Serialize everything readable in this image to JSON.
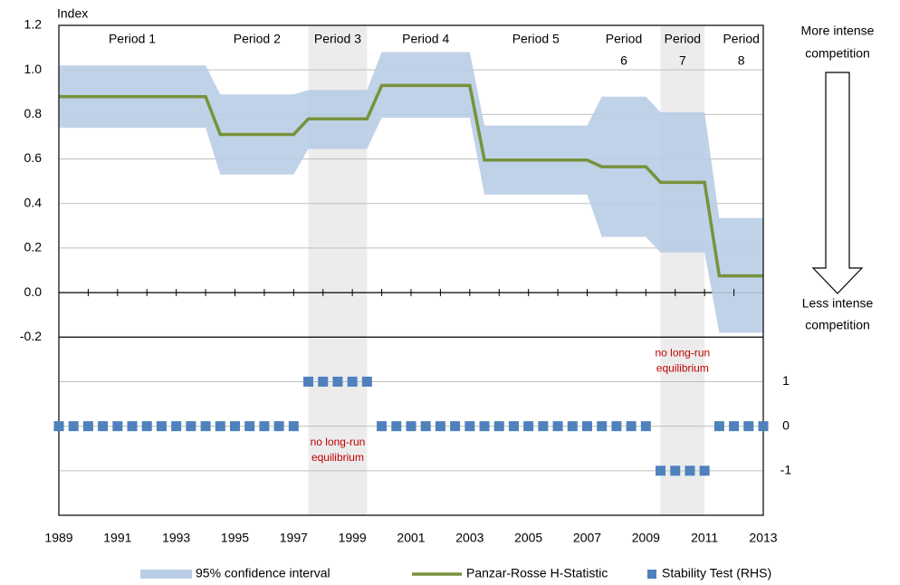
{
  "chart_data": {
    "type": "combo",
    "y_label": "Index",
    "x": [
      1989,
      1989.5,
      1990,
      1990.5,
      1991,
      1991.5,
      1992,
      1992.5,
      1993,
      1993.5,
      1994,
      1994.5,
      1995,
      1995.5,
      1996,
      1996.5,
      1997,
      1997.5,
      1998,
      1998.5,
      1999,
      1999.5,
      2000,
      2000.5,
      2001,
      2001.5,
      2002,
      2002.5,
      2003,
      2003.5,
      2004,
      2004.5,
      2005,
      2005.5,
      2006,
      2006.5,
      2007,
      2007.5,
      2008,
      2008.5,
      2009,
      2009.5,
      2010,
      2010.5,
      2011,
      2011.5,
      2012,
      2012.5,
      2013
    ],
    "series": [
      {
        "name": "95% confidence interval",
        "color": "#b9cde5",
        "type": "band",
        "upper": [
          1.02,
          1.02,
          1.02,
          1.02,
          1.02,
          1.02,
          1.02,
          1.02,
          1.02,
          1.02,
          1.02,
          0.89,
          0.89,
          0.89,
          0.89,
          0.89,
          0.89,
          0.91,
          0.91,
          0.91,
          0.91,
          0.91,
          1.08,
          1.08,
          1.08,
          1.08,
          1.08,
          1.08,
          1.08,
          0.75,
          0.75,
          0.75,
          0.75,
          0.75,
          0.75,
          0.75,
          0.75,
          0.88,
          0.88,
          0.88,
          0.88,
          0.81,
          0.81,
          0.81,
          0.81,
          0.335,
          0.335,
          0.335,
          0.335
        ],
        "lower": [
          0.74,
          0.74,
          0.74,
          0.74,
          0.74,
          0.74,
          0.74,
          0.74,
          0.74,
          0.74,
          0.74,
          0.53,
          0.53,
          0.53,
          0.53,
          0.53,
          0.53,
          0.645,
          0.645,
          0.645,
          0.645,
          0.645,
          0.785,
          0.785,
          0.785,
          0.785,
          0.785,
          0.785,
          0.785,
          0.44,
          0.44,
          0.44,
          0.44,
          0.44,
          0.44,
          0.44,
          0.44,
          0.25,
          0.25,
          0.25,
          0.25,
          0.18,
          0.18,
          0.18,
          0.18,
          -0.18,
          -0.18,
          -0.18,
          -0.18
        ]
      },
      {
        "name": "Panzar-Rosse H-Statistic",
        "color": "#77933c",
        "type": "line",
        "values": [
          0.88,
          0.88,
          0.88,
          0.88,
          0.88,
          0.88,
          0.88,
          0.88,
          0.88,
          0.88,
          0.88,
          0.71,
          0.71,
          0.71,
          0.71,
          0.71,
          0.71,
          0.78,
          0.78,
          0.78,
          0.78,
          0.78,
          0.93,
          0.93,
          0.93,
          0.93,
          0.93,
          0.93,
          0.93,
          0.595,
          0.595,
          0.595,
          0.595,
          0.595,
          0.595,
          0.595,
          0.595,
          0.565,
          0.565,
          0.565,
          0.565,
          0.495,
          0.495,
          0.495,
          0.495,
          0.075,
          0.075,
          0.075,
          0.075
        ]
      },
      {
        "name": "Stability Test (RHS)",
        "color": "#4f81bd",
        "type": "scatter",
        "axis": "y2",
        "values": [
          0,
          0,
          0,
          0,
          0,
          0,
          0,
          0,
          0,
          0,
          0,
          0,
          0,
          0,
          0,
          0,
          0,
          1,
          1,
          1,
          1,
          1,
          0,
          0,
          0,
          0,
          0,
          0,
          0,
          0,
          0,
          0,
          0,
          0,
          0,
          0,
          0,
          0,
          0,
          0,
          0,
          -1,
          -1,
          -1,
          -1,
          0,
          0,
          0,
          0
        ]
      }
    ],
    "periods": [
      [
        "Period 1"
      ],
      [
        "Period 2"
      ],
      [
        "Period 3"
      ],
      [
        "Period 4"
      ],
      [
        "Period 5"
      ],
      [
        "Period",
        "6"
      ],
      [
        "Period",
        "7"
      ],
      [
        "Period",
        "8"
      ]
    ],
    "shaded_x": [
      [
        1997.5,
        1999.5
      ],
      [
        2009.5,
        2011
      ]
    ],
    "shade_color": "#ececec",
    "annotations": [
      {
        "lines": [
          "no long-run",
          "equilibrium"
        ],
        "x": 1998.5,
        "y2": -1
      },
      {
        "lines": [
          "no long-run",
          "equilibrium"
        ],
        "x": 2010.25,
        "y2": 1
      }
    ],
    "top_note": [
      "More intense",
      "competition"
    ],
    "bottom_note": [
      "Less intense",
      "competition"
    ],
    "xlim": [
      1989,
      2013
    ],
    "xticks": [
      1989,
      1991,
      1993,
      1995,
      1997,
      1999,
      2001,
      2003,
      2005,
      2007,
      2009,
      2011,
      2013
    ],
    "xminorticks": [
      1990,
      1992,
      1994,
      1996,
      1998,
      2000,
      2002,
      2004,
      2006,
      2008,
      2010,
      2012
    ],
    "ylim": [
      -1,
      1.2
    ],
    "yticks": [
      {
        "value": -0.2,
        "label": "-0.2"
      },
      {
        "value": 0,
        "label": "0.0"
      },
      0.2,
      0.4,
      0.6,
      0.8,
      {
        "value": 1,
        "label": "1.0"
      },
      1.2
    ],
    "y2lim": [
      -2,
      9
    ],
    "y2ticks": [
      -1,
      0,
      1
    ],
    "grid": true
  }
}
